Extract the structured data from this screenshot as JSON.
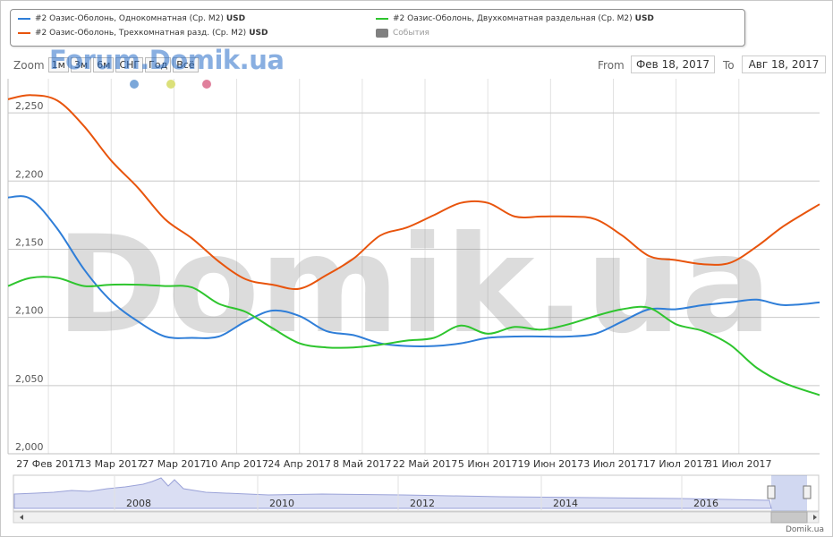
{
  "legend": [
    {
      "label": "#2 Оазис-Оболонь, Однокомнатная (Ср. М2)",
      "unit": "USD",
      "color": "#2f7ed8"
    },
    {
      "label": "#2 Оазис-Оболонь, Двухкомнатная раздельная (Ср. М2)",
      "unit": "USD",
      "color": "#2ec52e"
    },
    {
      "label": "#2 Оазис-Оболонь, Трехкомнатная разд. (Ср. М2)",
      "unit": "USD",
      "color": "#e8540c"
    },
    {
      "label": "События",
      "unit": "",
      "color": "#808080"
    }
  ],
  "range_selector": {
    "zoom_label": "Zoom",
    "buttons": [
      "1м",
      "3м",
      "6м",
      "СНГ",
      "Год",
      "Всё"
    ],
    "from_label": "From",
    "from_value": "Фев 18, 2017",
    "to_label": "To",
    "to_value": "Авг 18, 2017"
  },
  "watermark_top": "Forum.Domik.ua",
  "watermark_center": "Domik.ua",
  "credit": "Domik.ua",
  "event_colors": [
    "#7ba7d9",
    "#dbe07a",
    "#e0809c"
  ],
  "navigator": {
    "years": [
      "2008",
      "2010",
      "2012",
      "2014",
      "2016"
    ]
  },
  "chart_data": {
    "type": "line",
    "x": [
      "2017-02-18",
      "2017-02-23",
      "2017-03-01",
      "2017-03-07",
      "2017-03-13",
      "2017-03-19",
      "2017-03-25",
      "2017-03-31",
      "2017-04-06",
      "2017-04-12",
      "2017-04-18",
      "2017-04-24",
      "2017-04-30",
      "2017-05-06",
      "2017-05-12",
      "2017-05-18",
      "2017-05-24",
      "2017-05-30",
      "2017-06-05",
      "2017-06-11",
      "2017-06-17",
      "2017-06-23",
      "2017-06-29",
      "2017-07-05",
      "2017-07-11",
      "2017-07-17",
      "2017-07-23",
      "2017-07-29",
      "2017-08-04",
      "2017-08-10",
      "2017-08-18"
    ],
    "series": [
      {
        "name": "#2 Оазис-Оболонь, Однокомнатная (Ср. М2) USD",
        "color": "#2f7ed8",
        "values": [
          2188,
          2187,
          2165,
          2135,
          2112,
          2097,
          2086,
          2085,
          2086,
          2097,
          2105,
          2101,
          2090,
          2087,
          2081,
          2079,
          2079,
          2081,
          2085,
          2086,
          2086,
          2086,
          2088,
          2097,
          2106,
          2106,
          2109,
          2111,
          2113,
          2109,
          2111
        ]
      },
      {
        "name": "#2 Оазис-Оболонь, Двухкомнатная раздельная (Ср. М2) USD",
        "color": "#2ec52e",
        "values": [
          2123,
          2129,
          2129,
          2123,
          2124,
          2124,
          2123,
          2122,
          2110,
          2104,
          2092,
          2081,
          2078,
          2078,
          2080,
          2083,
          2085,
          2094,
          2088,
          2093,
          2091,
          2095,
          2101,
          2106,
          2107,
          2095,
          2090,
          2080,
          2063,
          2052,
          2043
        ]
      },
      {
        "name": "#2 Оазис-Оболонь, Трехкомнатная разд. (Ср. М2) USD",
        "color": "#e8540c",
        "values": [
          2260,
          2263,
          2259,
          2240,
          2215,
          2195,
          2172,
          2158,
          2141,
          2128,
          2124,
          2121,
          2131,
          2143,
          2160,
          2166,
          2175,
          2184,
          2184,
          2174,
          2174,
          2174,
          2172,
          2160,
          2145,
          2142,
          2139,
          2140,
          2152,
          2167,
          2183
        ]
      }
    ],
    "xaxis_ticks": [
      "27 Фев 2017",
      "13 Мар 2017",
      "27 Мар 2017",
      "10 Апр 2017",
      "24 Апр 2017",
      "8 Май 2017",
      "22 Май 2017",
      "5 Июн 2017",
      "19 Июн 2017",
      "3 Июл 2017",
      "17 Июл 2017",
      "31 Июл 2017"
    ],
    "xaxis_tick_dates": [
      "2017-02-27",
      "2017-03-13",
      "2017-03-27",
      "2017-04-10",
      "2017-04-24",
      "2017-05-08",
      "2017-05-22",
      "2017-06-05",
      "2017-06-19",
      "2017-07-03",
      "2017-07-17",
      "2017-07-31"
    ],
    "yaxis_ticks": [
      "2,000",
      "2,050",
      "2,100",
      "2,150",
      "2,200",
      "2,250"
    ],
    "ylim": [
      2000,
      2275
    ],
    "xlim": [
      "2017-02-18",
      "2017-08-18"
    ],
    "grid": true
  }
}
